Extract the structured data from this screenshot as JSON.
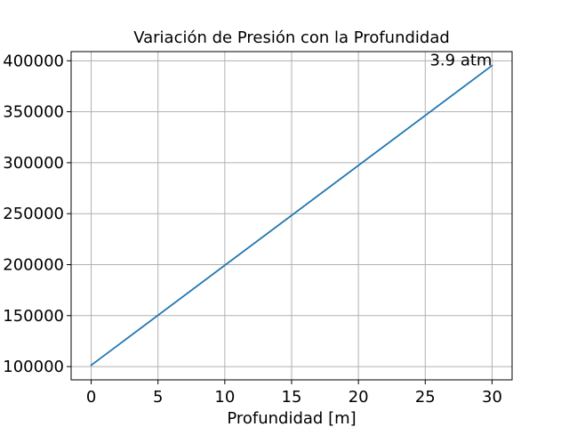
{
  "chart_data": {
    "type": "line",
    "title": "Variación de Presión con la Profundidad",
    "xlabel": "Profundidad [m]",
    "ylabel": "",
    "xlim": [
      -1.5,
      31.5
    ],
    "ylim": [
      87000,
      409000
    ],
    "x_ticks": [
      0,
      5,
      10,
      15,
      20,
      25,
      30
    ],
    "y_ticks": [
      100000,
      150000,
      200000,
      250000,
      300000,
      350000,
      400000
    ],
    "x_tick_labels": [
      "0",
      "5",
      "10",
      "15",
      "20",
      "25",
      "30"
    ],
    "y_tick_labels": [
      "100000",
      "150000",
      "200000",
      "250000",
      "300000",
      "350000",
      "400000"
    ],
    "grid": true,
    "series": [
      {
        "color": "#1f77b4",
        "x": [
          0,
          30
        ],
        "y": [
          101325,
          395325
        ]
      }
    ],
    "annotations": [
      {
        "text": "3.9 atm",
        "x": 30,
        "y": 395325
      }
    ]
  }
}
